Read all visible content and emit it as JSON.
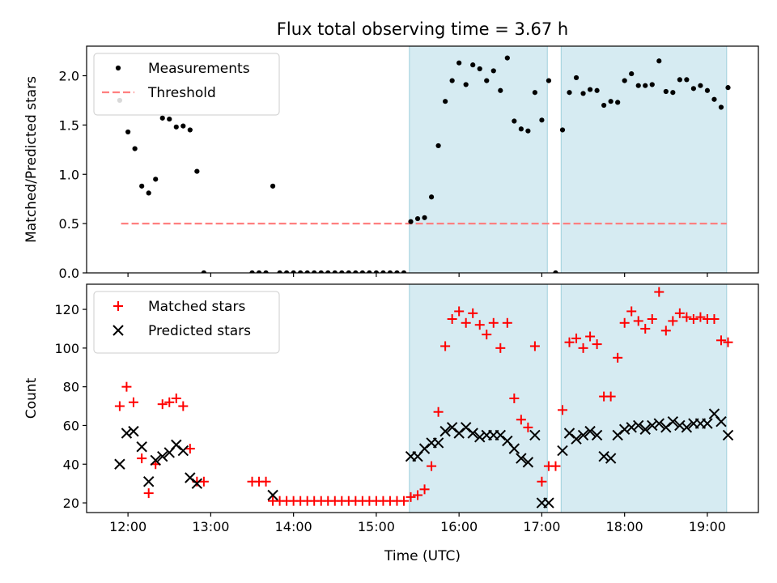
{
  "title": "Flux total observing time = 3.67 h",
  "xlabel": "Time (UTC)",
  "chart_data": [
    {
      "type": "scatter",
      "ylabel": "Matched/Predicted stars",
      "xlim": [
        "11:30",
        "19:37"
      ],
      "ylim": [
        0,
        2.3
      ],
      "yticks": [
        0.0,
        0.5,
        1.0,
        1.5,
        2.0
      ],
      "ytick_labels": [
        "0.0",
        "0.5",
        "1.0",
        "1.5",
        "2.0"
      ],
      "legend_position": "top-left",
      "shaded_intervals": [
        [
          "15:24",
          "17:04"
        ],
        [
          "17:14",
          "19:14"
        ]
      ],
      "threshold": {
        "name": "Threshold",
        "value": 0.5,
        "x_range": [
          "11:55",
          "19:14"
        ],
        "color": "#ff8080"
      },
      "series": [
        {
          "name": "Measurements",
          "color": "#000000",
          "points": [
            [
              "11:54",
              1.75
            ],
            [
              "12:00",
              1.43
            ],
            [
              "12:05",
              1.26
            ],
            [
              "12:10",
              0.88
            ],
            [
              "12:15",
              0.81
            ],
            [
              "12:20",
              0.95
            ],
            [
              "12:25",
              1.57
            ],
            [
              "12:30",
              1.56
            ],
            [
              "12:35",
              1.48
            ],
            [
              "12:40",
              1.49
            ],
            [
              "12:45",
              1.45
            ],
            [
              "12:50",
              1.03
            ],
            [
              "12:55",
              0.0
            ],
            [
              "13:30",
              0.0
            ],
            [
              "13:35",
              0.0
            ],
            [
              "13:40",
              0.0
            ],
            [
              "13:45",
              0.88
            ],
            [
              "13:50",
              0.0
            ],
            [
              "13:55",
              0.0
            ],
            [
              "14:00",
              0.0
            ],
            [
              "14:05",
              0.0
            ],
            [
              "14:10",
              0.0
            ],
            [
              "14:15",
              0.0
            ],
            [
              "14:20",
              0.0
            ],
            [
              "14:25",
              0.0
            ],
            [
              "14:30",
              0.0
            ],
            [
              "14:35",
              0.0
            ],
            [
              "14:40",
              0.0
            ],
            [
              "14:45",
              0.0
            ],
            [
              "14:50",
              0.0
            ],
            [
              "14:55",
              0.0
            ],
            [
              "15:00",
              0.0
            ],
            [
              "15:05",
              0.0
            ],
            [
              "15:10",
              0.0
            ],
            [
              "15:15",
              0.0
            ],
            [
              "15:20",
              0.0
            ],
            [
              "15:25",
              0.52
            ],
            [
              "15:30",
              0.55
            ],
            [
              "15:35",
              0.56
            ],
            [
              "15:40",
              0.77
            ],
            [
              "15:45",
              1.29
            ],
            [
              "15:50",
              1.74
            ],
            [
              "15:55",
              1.95
            ],
            [
              "16:00",
              2.13
            ],
            [
              "16:05",
              1.91
            ],
            [
              "16:10",
              2.11
            ],
            [
              "16:15",
              2.07
            ],
            [
              "16:20",
              1.95
            ],
            [
              "16:25",
              2.05
            ],
            [
              "16:30",
              1.85
            ],
            [
              "16:35",
              2.18
            ],
            [
              "16:40",
              1.54
            ],
            [
              "16:45",
              1.46
            ],
            [
              "16:50",
              1.44
            ],
            [
              "16:55",
              1.83
            ],
            [
              "17:00",
              1.55
            ],
            [
              "17:05",
              1.95
            ],
            [
              "17:10",
              0.0
            ],
            [
              "17:15",
              1.45
            ],
            [
              "17:20",
              1.83
            ],
            [
              "17:25",
              1.98
            ],
            [
              "17:30",
              1.82
            ],
            [
              "17:35",
              1.86
            ],
            [
              "17:40",
              1.85
            ],
            [
              "17:45",
              1.7
            ],
            [
              "17:50",
              1.74
            ],
            [
              "17:55",
              1.73
            ],
            [
              "18:00",
              1.95
            ],
            [
              "18:05",
              2.02
            ],
            [
              "18:10",
              1.9
            ],
            [
              "18:15",
              1.9
            ],
            [
              "18:20",
              1.91
            ],
            [
              "18:25",
              2.15
            ],
            [
              "18:30",
              1.84
            ],
            [
              "18:35",
              1.83
            ],
            [
              "18:40",
              1.96
            ],
            [
              "18:45",
              1.96
            ],
            [
              "18:50",
              1.87
            ],
            [
              "18:55",
              1.9
            ],
            [
              "19:00",
              1.85
            ],
            [
              "19:05",
              1.76
            ],
            [
              "19:10",
              1.68
            ],
            [
              "19:15",
              1.88
            ]
          ]
        }
      ]
    },
    {
      "type": "scatter",
      "ylabel": "Count",
      "xlim": [
        "11:30",
        "19:37"
      ],
      "ylim": [
        15,
        133
      ],
      "yticks": [
        20,
        40,
        60,
        80,
        100,
        120
      ],
      "ytick_labels": [
        "20",
        "40",
        "60",
        "80",
        "100",
        "120"
      ],
      "xticks": [
        "12:00",
        "13:00",
        "14:00",
        "15:00",
        "16:00",
        "17:00",
        "18:00",
        "19:00"
      ],
      "xtick_labels": [
        "12:00",
        "13:00",
        "14:00",
        "15:00",
        "16:00",
        "17:00",
        "18:00",
        "19:00"
      ],
      "legend_position": "top-left",
      "shaded_intervals": [
        [
          "15:24",
          "17:04"
        ],
        [
          "17:14",
          "19:14"
        ]
      ],
      "series": [
        {
          "name": "Matched stars",
          "marker": "plus",
          "color": "#ff0000",
          "points": [
            [
              "11:54",
              70
            ],
            [
              "11:59",
              80
            ],
            [
              "12:04",
              72
            ],
            [
              "12:10",
              43
            ],
            [
              "12:15",
              25
            ],
            [
              "12:20",
              40
            ],
            [
              "12:25",
              71
            ],
            [
              "12:30",
              72
            ],
            [
              "12:35",
              74
            ],
            [
              "12:40",
              70
            ],
            [
              "12:45",
              48
            ],
            [
              "12:50",
              31
            ],
            [
              "12:55",
              31
            ],
            [
              "13:30",
              31
            ],
            [
              "13:35",
              31
            ],
            [
              "13:40",
              31
            ],
            [
              "13:45",
              21
            ],
            [
              "13:50",
              21
            ],
            [
              "13:55",
              21
            ],
            [
              "14:00",
              21
            ],
            [
              "14:05",
              21
            ],
            [
              "14:10",
              21
            ],
            [
              "14:15",
              21
            ],
            [
              "14:20",
              21
            ],
            [
              "14:25",
              21
            ],
            [
              "14:30",
              21
            ],
            [
              "14:35",
              21
            ],
            [
              "14:40",
              21
            ],
            [
              "14:45",
              21
            ],
            [
              "14:50",
              21
            ],
            [
              "14:55",
              21
            ],
            [
              "15:00",
              21
            ],
            [
              "15:05",
              21
            ],
            [
              "15:10",
              21
            ],
            [
              "15:15",
              21
            ],
            [
              "15:20",
              21
            ],
            [
              "15:25",
              23
            ],
            [
              "15:30",
              24
            ],
            [
              "15:35",
              27
            ],
            [
              "15:40",
              39
            ],
            [
              "15:45",
              67
            ],
            [
              "15:50",
              101
            ],
            [
              "15:55",
              115
            ],
            [
              "16:00",
              119
            ],
            [
              "16:05",
              113
            ],
            [
              "16:10",
              118
            ],
            [
              "16:15",
              112
            ],
            [
              "16:20",
              107
            ],
            [
              "16:25",
              113
            ],
            [
              "16:30",
              100
            ],
            [
              "16:35",
              113
            ],
            [
              "16:40",
              74
            ],
            [
              "16:45",
              63
            ],
            [
              "16:50",
              59
            ],
            [
              "16:55",
              101
            ],
            [
              "17:00",
              31
            ],
            [
              "17:05",
              39
            ],
            [
              "17:10",
              39
            ],
            [
              "17:15",
              68
            ],
            [
              "17:20",
              103
            ],
            [
              "17:25",
              105
            ],
            [
              "17:30",
              100
            ],
            [
              "17:35",
              106
            ],
            [
              "17:40",
              102
            ],
            [
              "17:45",
              75
            ],
            [
              "17:50",
              75
            ],
            [
              "17:55",
              95
            ],
            [
              "18:00",
              113
            ],
            [
              "18:05",
              119
            ],
            [
              "18:10",
              114
            ],
            [
              "18:15",
              110
            ],
            [
              "18:20",
              115
            ],
            [
              "18:25",
              129
            ],
            [
              "18:30",
              109
            ],
            [
              "18:35",
              114
            ],
            [
              "18:40",
              118
            ],
            [
              "18:45",
              116
            ],
            [
              "18:50",
              115
            ],
            [
              "18:55",
              116
            ],
            [
              "19:00",
              115
            ],
            [
              "19:05",
              115
            ],
            [
              "19:10",
              104
            ],
            [
              "19:15",
              103
            ]
          ]
        },
        {
          "name": "Predicted stars",
          "marker": "x",
          "color": "#000000",
          "points": [
            [
              "11:54",
              40
            ],
            [
              "11:59",
              56
            ],
            [
              "12:04",
              57
            ],
            [
              "12:10",
              49
            ],
            [
              "12:15",
              31
            ],
            [
              "12:20",
              42
            ],
            [
              "12:25",
              44
            ],
            [
              "12:30",
              46
            ],
            [
              "12:35",
              50
            ],
            [
              "12:40",
              47
            ],
            [
              "12:45",
              33
            ],
            [
              "12:50",
              30
            ],
            [
              "13:45",
              24
            ],
            [
              "15:25",
              44
            ],
            [
              "15:30",
              44
            ],
            [
              "15:35",
              48
            ],
            [
              "15:40",
              51
            ],
            [
              "15:45",
              51
            ],
            [
              "15:50",
              57
            ],
            [
              "15:55",
              59
            ],
            [
              "16:00",
              56
            ],
            [
              "16:05",
              59
            ],
            [
              "16:10",
              56
            ],
            [
              "16:15",
              54
            ],
            [
              "16:20",
              55
            ],
            [
              "16:25",
              55
            ],
            [
              "16:30",
              55
            ],
            [
              "16:35",
              52
            ],
            [
              "16:40",
              48
            ],
            [
              "16:45",
              43
            ],
            [
              "16:50",
              41
            ],
            [
              "16:55",
              55
            ],
            [
              "17:00",
              20
            ],
            [
              "17:05",
              20
            ],
            [
              "17:15",
              47
            ],
            [
              "17:20",
              56
            ],
            [
              "17:25",
              53
            ],
            [
              "17:30",
              55
            ],
            [
              "17:35",
              57
            ],
            [
              "17:40",
              55
            ],
            [
              "17:45",
              44
            ],
            [
              "17:50",
              43
            ],
            [
              "17:55",
              55
            ],
            [
              "18:00",
              58
            ],
            [
              "18:05",
              59
            ],
            [
              "18:10",
              60
            ],
            [
              "18:15",
              58
            ],
            [
              "18:20",
              60
            ],
            [
              "18:25",
              61
            ],
            [
              "18:30",
              59
            ],
            [
              "18:35",
              62
            ],
            [
              "18:40",
              60
            ],
            [
              "18:45",
              59
            ],
            [
              "18:50",
              61
            ],
            [
              "18:55",
              61
            ],
            [
              "19:00",
              61
            ],
            [
              "19:05",
              66
            ],
            [
              "19:10",
              62
            ],
            [
              "19:15",
              55
            ]
          ]
        }
      ]
    }
  ]
}
